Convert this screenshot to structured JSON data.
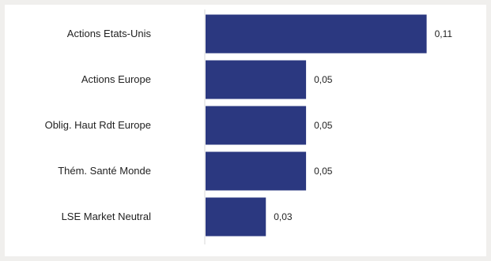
{
  "chart_data": {
    "type": "bar",
    "orientation": "horizontal",
    "categories": [
      "Actions Etats-Unis",
      "Actions Europe",
      "Oblig. Haut Rdt Europe",
      "Thém. Santé Monde",
      "LSE Market Neutral"
    ],
    "values": [
      0.11,
      0.05,
      0.05,
      0.05,
      0.03
    ],
    "value_labels": [
      "0,11",
      "0,05",
      "0,05",
      "0,05",
      "0,03"
    ],
    "title": "",
    "xlabel": "",
    "ylabel": "",
    "xlim": [
      0,
      0.12
    ],
    "grid": false,
    "legend": "none",
    "colors": {
      "bar": "#2b3880",
      "axis": "#d9d9d9",
      "background": "#f0efed",
      "panel": "#ffffff"
    }
  }
}
